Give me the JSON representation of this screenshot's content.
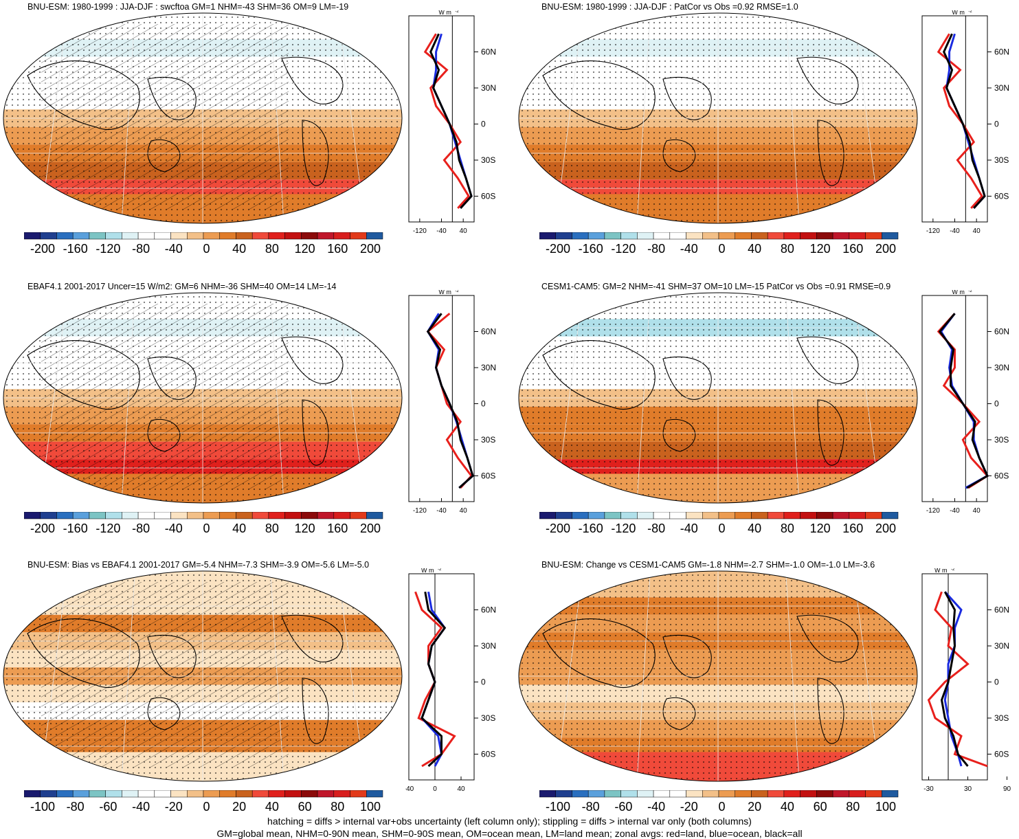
{
  "panels": [
    {
      "title": "BNU-ESM: 1980-1999 : JJA-DJF : swcftoa GM=1 NHM=-43 SHM=36 OM=9 LM=-19",
      "colorbar_ticks": [
        "-200",
        "-160",
        "-120",
        "-80",
        "-40",
        "0",
        "40",
        "80",
        "120",
        "160",
        "200"
      ],
      "zonal_xticks": [
        "-120",
        "-40",
        "40"
      ],
      "zonal_unit": "W m",
      "zonal_unit_sup": "-2",
      "lat_ticks": [
        "60N",
        "30N",
        "0",
        "30S",
        "60S"
      ]
    },
    {
      "title": "BNU-ESM: 1980-1999 : JJA-DJF : PatCor vs Obs =0.92 RMSE=1.0",
      "colorbar_ticks": [
        "-200",
        "-160",
        "-120",
        "-80",
        "-40",
        "0",
        "40",
        "80",
        "120",
        "160",
        "200"
      ],
      "zonal_xticks": [
        "-120",
        "-40",
        "40"
      ],
      "zonal_unit": "W m",
      "zonal_unit_sup": "-2",
      "lat_ticks": [
        "60N",
        "30N",
        "0",
        "30S",
        "60S"
      ]
    },
    {
      "title": "EBAF4.1 2001-2017 Uncer=15 W/m2: GM=6 NHM=-36 SHM=40 OM=14 LM=-14",
      "colorbar_ticks": [
        "-200",
        "-160",
        "-120",
        "-80",
        "-40",
        "0",
        "40",
        "80",
        "120",
        "160",
        "200"
      ],
      "zonal_xticks": [
        "-120",
        "-40",
        "40"
      ],
      "zonal_unit": "W m",
      "zonal_unit_sup": "-2",
      "lat_ticks": [
        "60N",
        "30N",
        "0",
        "30S",
        "60S"
      ]
    },
    {
      "title": "CESM1-CAM5: GM=2 NHM=-41 SHM=37 OM=10 LM=-15 PatCor vs Obs =0.91 RMSE=0.9",
      "colorbar_ticks": [
        "-200",
        "-160",
        "-120",
        "-80",
        "-40",
        "0",
        "40",
        "80",
        "120",
        "160",
        "200"
      ],
      "zonal_xticks": [
        "-120",
        "-40",
        "40"
      ],
      "zonal_unit": "W m",
      "zonal_unit_sup": "-2",
      "lat_ticks": [
        "60N",
        "30N",
        "0",
        "30S",
        "60S"
      ]
    },
    {
      "title": "BNU-ESM: Bias vs EBAF4.1 2001-2017 GM=-5.4 NHM=-7.3 SHM=-3.9 OM=-5.6 LM=-5.0",
      "colorbar_ticks": [
        "-100",
        "-80",
        "-60",
        "-40",
        "-20",
        "0",
        "20",
        "40",
        "60",
        "80",
        "100"
      ],
      "zonal_xticks": [
        "-40",
        "0",
        "40"
      ],
      "zonal_unit": "W m",
      "zonal_unit_sup": "-2",
      "lat_ticks": [
        "60N",
        "30N",
        "0",
        "30S",
        "60S"
      ]
    },
    {
      "title": "BNU-ESM: Change vs CESM1-CAM5 GM=-1.8 NHM=-2.7 SHM=-1.0 OM=-1.0 LM=-3.6",
      "colorbar_ticks": [
        "-100",
        "-80",
        "-60",
        "-40",
        "-20",
        "0",
        "20",
        "40",
        "60",
        "80",
        "100"
      ],
      "zonal_xticks": [
        "-30",
        "30",
        "90"
      ],
      "zonal_unit": "W m",
      "zonal_unit_sup": "-2",
      "lat_ticks": [
        "60N",
        "30N",
        "0",
        "30S",
        "60S"
      ]
    }
  ],
  "colorbar_colors": [
    "#1a1a6e",
    "#1f3f8f",
    "#2a6fbf",
    "#5aa0dc",
    "#7cc4c4",
    "#b0e0ea",
    "#dff2f5",
    "#ffffff",
    "#ffffff",
    "#fbe3c2",
    "#f3c088",
    "#ec9c52",
    "#e07c2a",
    "#c9621e",
    "#f04a3a",
    "#e0201c",
    "#c31010",
    "#8b0a0a",
    "#c0162a",
    "#d81e1e",
    "#e23a1a",
    "#1f5a9f"
  ],
  "footer": {
    "line1": "hatching = diffs > internal var+obs uncertainty (left column only); stippling = diffs > internal var only (both columns)",
    "line2": "GM=global mean, NHM=0-90N mean, SHM=0-90S mean, OM=ocean mean, LM=land mean; zonal avgs: red=land, blue=ocean, black=all"
  },
  "legend_colors": {
    "land": "#e8201c",
    "ocean": "#1a2be0",
    "all": "#000000"
  },
  "chart_data": [
    {
      "type": "heatmap",
      "title": "BNU-ESM: 1980-1999 : JJA-DJF : swcftoa GM=1 NHM=-43 SHM=36 OM=9 LM=-19",
      "colorbar_range": [
        -200,
        200
      ],
      "zonal_series": [
        {
          "name": "land",
          "lat": [
            75,
            60,
            45,
            30,
            15,
            0,
            -15,
            -30,
            -45,
            -60,
            -70
          ],
          "values": [
            -60,
            -100,
            -20,
            -80,
            -60,
            -10,
            30,
            -30,
            20,
            60,
            20
          ]
        },
        {
          "name": "ocean",
          "lat": [
            75,
            60,
            45,
            30,
            15,
            0,
            -15,
            -30,
            -45,
            -60,
            -70
          ],
          "values": [
            -40,
            -60,
            -60,
            -70,
            -40,
            -10,
            10,
            30,
            50,
            70,
            30
          ]
        },
        {
          "name": "all",
          "lat": [
            75,
            60,
            45,
            30,
            15,
            0,
            -15,
            -30,
            -45,
            -60,
            -70
          ],
          "values": [
            -50,
            -80,
            -50,
            -70,
            -40,
            -10,
            15,
            25,
            50,
            70,
            30
          ]
        }
      ]
    },
    {
      "type": "heatmap",
      "title": "BNU-ESM: 1980-1999 : JJA-DJF : PatCor vs Obs =0.92 RMSE=1.0",
      "colorbar_range": [
        -200,
        200
      ],
      "zonal_series": [
        {
          "name": "land",
          "lat": [
            75,
            60,
            45,
            30,
            15,
            0,
            -15,
            -30,
            -45,
            -60,
            -70
          ],
          "values": [
            -60,
            -100,
            -20,
            -80,
            -60,
            -10,
            30,
            -30,
            20,
            60,
            20
          ]
        },
        {
          "name": "ocean",
          "lat": [
            75,
            60,
            45,
            30,
            15,
            0,
            -15,
            -30,
            -45,
            -60,
            -70
          ],
          "values": [
            -40,
            -60,
            -60,
            -70,
            -40,
            -10,
            10,
            30,
            50,
            70,
            30
          ]
        },
        {
          "name": "all",
          "lat": [
            75,
            60,
            45,
            30,
            15,
            0,
            -15,
            -30,
            -45,
            -60,
            -70
          ],
          "values": [
            -50,
            -80,
            -50,
            -70,
            -40,
            -10,
            15,
            25,
            50,
            70,
            30
          ]
        }
      ]
    },
    {
      "type": "heatmap",
      "title": "EBAF4.1 2001-2017 Uncer=15 W/m2: GM=6 NHM=-36 SHM=40 OM=14 LM=-14",
      "colorbar_range": [
        -200,
        200
      ],
      "zonal_series": [
        {
          "name": "land",
          "lat": [
            75,
            60,
            45,
            30,
            15,
            0,
            -15,
            -30,
            -45,
            -60,
            -70
          ],
          "values": [
            -10,
            -90,
            -30,
            -60,
            -40,
            -20,
            30,
            -20,
            20,
            70,
            30
          ]
        },
        {
          "name": "ocean",
          "lat": [
            75,
            60,
            45,
            30,
            15,
            0,
            -15,
            -30,
            -45,
            -60,
            -70
          ],
          "values": [
            -50,
            -90,
            -50,
            -60,
            -40,
            -10,
            15,
            35,
            55,
            75,
            25
          ]
        },
        {
          "name": "all",
          "lat": [
            75,
            60,
            45,
            30,
            15,
            0,
            -15,
            -30,
            -45,
            -60,
            -70
          ],
          "values": [
            -40,
            -90,
            -45,
            -60,
            -40,
            -10,
            18,
            30,
            55,
            75,
            25
          ]
        }
      ]
    },
    {
      "type": "heatmap",
      "title": "CESM1-CAM5: GM=2 NHM=-41 SHM=37 OM=10 LM=-15 PatCor vs Obs =0.91 RMSE=0.9",
      "colorbar_range": [
        -200,
        200
      ],
      "zonal_series": [
        {
          "name": "land",
          "lat": [
            75,
            60,
            45,
            30,
            15,
            0,
            -15,
            -30,
            -45,
            -60,
            -70
          ],
          "values": [
            -40,
            -100,
            -40,
            -40,
            -80,
            -10,
            50,
            -10,
            20,
            80,
            10
          ]
        },
        {
          "name": "ocean",
          "lat": [
            75,
            60,
            45,
            30,
            15,
            0,
            -15,
            -30,
            -45,
            -60,
            -70
          ],
          "values": [
            -40,
            -90,
            -50,
            -60,
            -50,
            -10,
            30,
            30,
            50,
            80,
            0
          ]
        },
        {
          "name": "all",
          "lat": [
            75,
            60,
            45,
            30,
            15,
            0,
            -15,
            -30,
            -45,
            -60,
            -70
          ],
          "values": [
            -40,
            -95,
            -45,
            -55,
            -55,
            -10,
            35,
            25,
            50,
            80,
            5
          ]
        }
      ]
    },
    {
      "type": "heatmap",
      "title": "BNU-ESM: Bias vs EBAF4.1 2001-2017 GM=-5.4 NHM=-7.3 SHM=-3.9 OM=-5.6 LM=-5.0",
      "colorbar_range": [
        -100,
        100
      ],
      "zonal_series": [
        {
          "name": "land",
          "lat": [
            75,
            60,
            45,
            30,
            15,
            0,
            -15,
            -30,
            -45,
            -60,
            -70
          ],
          "values": [
            -30,
            -20,
            10,
            -10,
            -10,
            0,
            -15,
            -25,
            30,
            10,
            -20
          ]
        },
        {
          "name": "ocean",
          "lat": [
            75,
            60,
            45,
            30,
            15,
            0,
            -15,
            -30,
            -45,
            -60,
            -70
          ],
          "values": [
            -10,
            -5,
            15,
            -5,
            -10,
            0,
            -10,
            -20,
            5,
            10,
            0
          ]
        },
        {
          "name": "all",
          "lat": [
            75,
            60,
            45,
            30,
            15,
            0,
            -15,
            -30,
            -45,
            -60,
            -70
          ],
          "values": [
            -15,
            -10,
            15,
            -5,
            -10,
            0,
            -10,
            -20,
            10,
            10,
            -10
          ]
        }
      ]
    },
    {
      "type": "heatmap",
      "title": "BNU-ESM: Change vs CESM1-CAM5 GM=-1.8 NHM=-2.7 SHM=-1.0 OM=-1.0 LM=-3.6",
      "colorbar_range": [
        -100,
        100
      ],
      "zonal_series": [
        {
          "name": "land",
          "lat": [
            75,
            60,
            45,
            30,
            15,
            0,
            -15,
            -30,
            -45,
            -60,
            -70
          ],
          "values": [
            -10,
            -20,
            5,
            0,
            30,
            -5,
            -30,
            -20,
            20,
            10,
            90
          ]
        },
        {
          "name": "ocean",
          "lat": [
            75,
            60,
            45,
            30,
            15,
            0,
            -15,
            -30,
            -45,
            -60,
            -70
          ],
          "values": [
            -5,
            20,
            10,
            10,
            0,
            0,
            -5,
            0,
            5,
            15,
            20
          ]
        },
        {
          "name": "all",
          "lat": [
            75,
            60,
            45,
            30,
            15,
            0,
            -15,
            -30,
            -45,
            -60,
            -70
          ],
          "values": [
            -5,
            10,
            8,
            10,
            5,
            0,
            -10,
            -5,
            8,
            15,
            30
          ]
        }
      ]
    }
  ]
}
